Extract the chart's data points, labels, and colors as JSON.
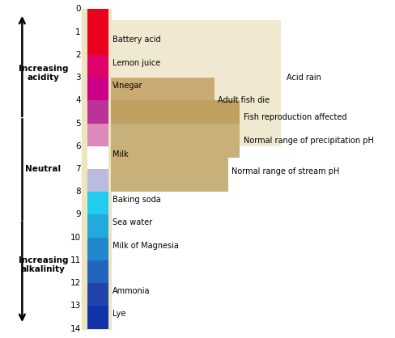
{
  "ph_colors": [
    "#E8001C",
    "#E8001C",
    "#E0006A",
    "#CC0088",
    "#BB3399",
    "#DD88BB",
    "#FFFFFF",
    "#BBBBDD",
    "#22CCEE",
    "#22AADD",
    "#2288CC",
    "#2266BB",
    "#2244AA",
    "#1133AA",
    "#110088"
  ],
  "background_color": "#FFFFFF",
  "bar_bg_color": "#EDE4C0",
  "acid_rain_color": "#F0E8D0",
  "range_bar_color": "#C8B07A",
  "substance_labels": {
    "1": "Battery acid",
    "2": "Lemon juice",
    "3": "Vinegar",
    "6": "Milk",
    "8": "Baking soda",
    "9": "Sea water",
    "10": "Milk of Magnesia",
    "12": "Ammonia",
    "13": "Lye"
  }
}
